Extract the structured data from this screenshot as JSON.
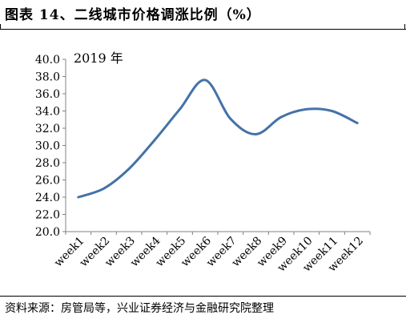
{
  "header": {
    "title": "图表 14、二线城市价格调涨比例（%）"
  },
  "footer": {
    "source": "资料来源：房管局等，兴业证券经济与金融研究院整理"
  },
  "chart_data": {
    "type": "line",
    "annotation": "2019 年",
    "categories": [
      "week1",
      "week2",
      "week3",
      "week4",
      "week5",
      "week6",
      "week7",
      "week8",
      "week9",
      "week10",
      "week11",
      "week12"
    ],
    "series": [
      {
        "values": [
          24.0,
          25.0,
          27.3,
          30.6,
          34.2,
          37.6,
          33.1,
          31.3,
          33.3,
          34.2,
          34.0,
          32.6
        ],
        "color": "#4472a8"
      }
    ],
    "ylim": [
      20.0,
      40.0
    ],
    "yticks": [
      "20.0",
      "22.0",
      "24.0",
      "26.0",
      "28.0",
      "30.0",
      "32.0",
      "34.0",
      "36.0",
      "38.0",
      "40.0"
    ],
    "grid": false,
    "legend": "none"
  }
}
